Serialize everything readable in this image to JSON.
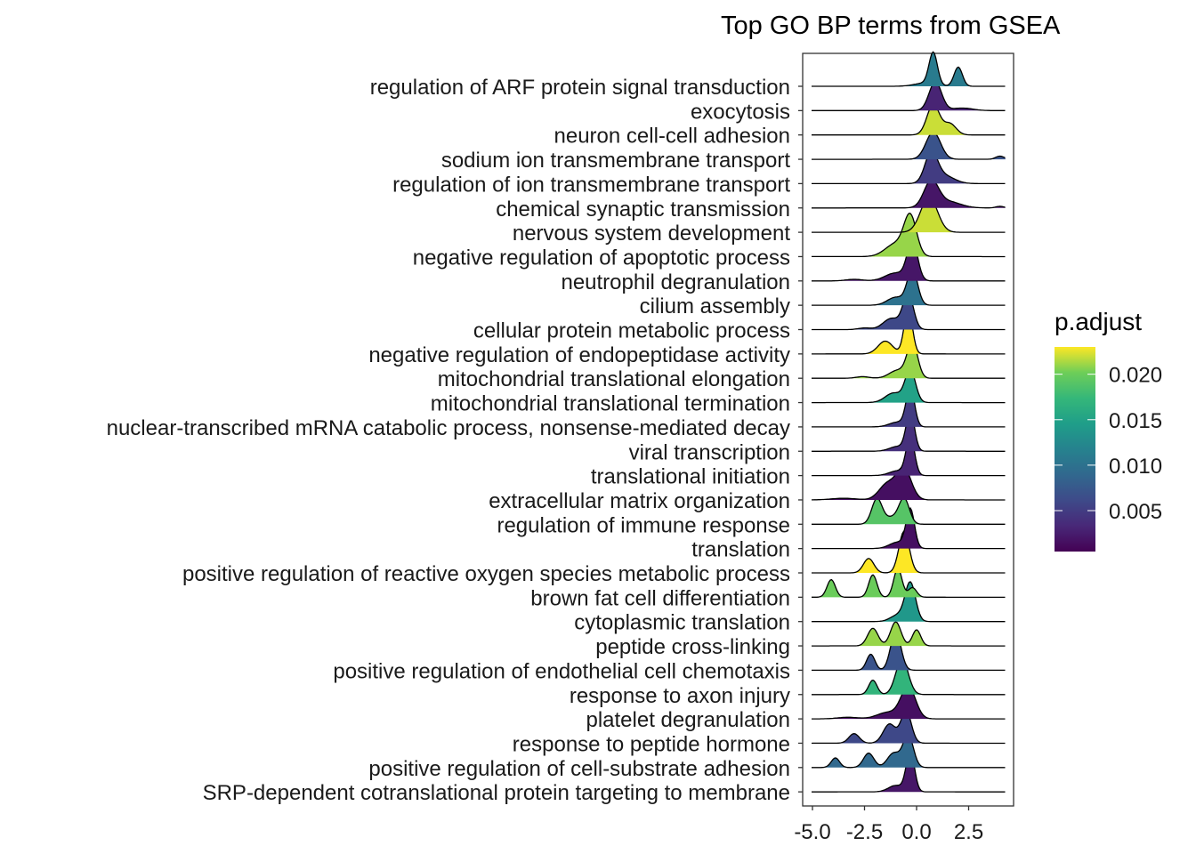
{
  "chart_data": {
    "type": "ridgeline",
    "title": "Top GO BP terms from GSEA",
    "xlabel": "",
    "ylabel": "",
    "xlim": [
      -5.5,
      4.5
    ],
    "x_ticks": [
      "-5.0",
      "-2.5",
      "0.0",
      "2.5"
    ],
    "x_tick_values": [
      -5.0,
      -2.5,
      0.0,
      2.5
    ],
    "legend": {
      "title": "p.adjust",
      "placement": "right",
      "tick_labels": [
        "0.020",
        "0.015",
        "0.010",
        "0.005"
      ],
      "tick_values": [
        0.02,
        0.015,
        0.01,
        0.005
      ],
      "range": [
        0.0005,
        0.023
      ],
      "colormap": "viridis"
    },
    "series": [
      {
        "name": "regulation of ARF protein signal transduction",
        "p_adjust": 0.011,
        "peaks": [
          [
            0.8,
            0.2,
            1.0
          ],
          [
            2.0,
            0.2,
            0.6
          ],
          [
            0.4,
            0.5,
            0.1
          ]
        ]
      },
      {
        "name": "exocytosis",
        "p_adjust": 0.003,
        "peaks": [
          [
            0.9,
            0.3,
            0.9
          ],
          [
            2.2,
            0.5,
            0.08
          ]
        ]
      },
      {
        "name": "neuron cell-cell adhesion",
        "p_adjust": 0.022,
        "peaks": [
          [
            0.8,
            0.3,
            0.95
          ],
          [
            1.6,
            0.3,
            0.35
          ]
        ]
      },
      {
        "name": "sodium ion transmembrane transport",
        "p_adjust": 0.007,
        "peaks": [
          [
            0.8,
            0.35,
            0.85
          ],
          [
            4.0,
            0.2,
            0.1
          ]
        ]
      },
      {
        "name": "regulation of ion transmembrane transport",
        "p_adjust": 0.005,
        "peaks": [
          [
            0.7,
            0.3,
            0.9
          ],
          [
            1.3,
            0.5,
            0.25
          ]
        ]
      },
      {
        "name": "chemical synaptic transmission",
        "p_adjust": 0.002,
        "peaks": [
          [
            0.7,
            0.35,
            0.8
          ],
          [
            1.5,
            0.6,
            0.2
          ],
          [
            4.0,
            0.2,
            0.05
          ]
        ]
      },
      {
        "name": "nervous system development",
        "p_adjust": 0.022,
        "peaks": [
          [
            0.6,
            0.4,
            1.1
          ]
        ]
      },
      {
        "name": "negative regulation of apoptotic process",
        "p_adjust": 0.021,
        "peaks": [
          [
            -0.3,
            0.3,
            1.2
          ],
          [
            -1.0,
            0.5,
            0.4
          ]
        ]
      },
      {
        "name": "neutrophil degranulation",
        "p_adjust": 0.002,
        "peaks": [
          [
            -0.2,
            0.25,
            1.2
          ],
          [
            -1.0,
            0.5,
            0.25
          ],
          [
            -3.0,
            0.4,
            0.05
          ]
        ]
      },
      {
        "name": "cilium assembly",
        "p_adjust": 0.01,
        "peaks": [
          [
            -0.2,
            0.25,
            1.1
          ],
          [
            -1.0,
            0.4,
            0.25
          ]
        ]
      },
      {
        "name": "cellular protein metabolic process",
        "p_adjust": 0.006,
        "peaks": [
          [
            -0.4,
            0.25,
            1.1
          ],
          [
            -1.2,
            0.4,
            0.35
          ],
          [
            -2.5,
            0.3,
            0.05
          ]
        ]
      },
      {
        "name": "negative regulation of endopeptidase activity",
        "p_adjust": 0.023,
        "peaks": [
          [
            -0.4,
            0.2,
            1.4
          ],
          [
            -1.5,
            0.35,
            0.4
          ]
        ]
      },
      {
        "name": "mitochondrial translational elongation",
        "p_adjust": 0.021,
        "peaks": [
          [
            -0.2,
            0.25,
            1.1
          ],
          [
            -0.9,
            0.4,
            0.25
          ],
          [
            -2.6,
            0.3,
            0.05
          ]
        ]
      },
      {
        "name": "mitochondrial translational termination",
        "p_adjust": 0.015,
        "peaks": [
          [
            -0.3,
            0.25,
            1.0
          ],
          [
            -1.1,
            0.4,
            0.3
          ]
        ]
      },
      {
        "name": "nuclear-transcribed mRNA catabolic process, nonsense-mediated decay",
        "p_adjust": 0.005,
        "peaks": [
          [
            -0.3,
            0.2,
            1.2
          ],
          [
            -0.9,
            0.4,
            0.15
          ]
        ]
      },
      {
        "name": "viral transcription",
        "p_adjust": 0.004,
        "peaks": [
          [
            -0.3,
            0.2,
            1.2
          ],
          [
            -0.9,
            0.4,
            0.15
          ]
        ]
      },
      {
        "name": "translational initiation",
        "p_adjust": 0.003,
        "peaks": [
          [
            -0.3,
            0.2,
            1.2
          ],
          [
            -0.9,
            0.4,
            0.15
          ]
        ]
      },
      {
        "name": "extracellular matrix organization",
        "p_adjust": 0.0015,
        "peaks": [
          [
            -0.6,
            0.35,
            0.95
          ],
          [
            -1.4,
            0.4,
            0.5
          ],
          [
            -3.5,
            0.6,
            0.05
          ]
        ]
      },
      {
        "name": "regulation of immune response",
        "p_adjust": 0.019,
        "peaks": [
          [
            -0.6,
            0.25,
            0.8
          ],
          [
            -1.9,
            0.25,
            0.8
          ],
          [
            -1.2,
            0.3,
            0.2
          ]
        ]
      },
      {
        "name": "translation",
        "p_adjust": 0.0015,
        "peaks": [
          [
            -0.3,
            0.2,
            1.2
          ],
          [
            -0.9,
            0.4,
            0.2
          ]
        ]
      },
      {
        "name": "positive regulation of reactive oxygen species metabolic process",
        "p_adjust": 0.023,
        "peaks": [
          [
            -0.6,
            0.25,
            1.3
          ],
          [
            -2.3,
            0.25,
            0.45
          ]
        ]
      },
      {
        "name": "brown fat cell differentiation",
        "p_adjust": 0.02,
        "peaks": [
          [
            -4.1,
            0.2,
            0.55
          ],
          [
            -2.1,
            0.2,
            0.7
          ],
          [
            -0.9,
            0.2,
            0.9
          ],
          [
            -0.2,
            0.2,
            0.3
          ]
        ]
      },
      {
        "name": "cytoplasmic translation",
        "p_adjust": 0.014,
        "peaks": [
          [
            -0.3,
            0.25,
            1.2
          ],
          [
            -0.9,
            0.35,
            0.2
          ]
        ]
      },
      {
        "name": "peptide cross-linking",
        "p_adjust": 0.021,
        "peaks": [
          [
            -2.1,
            0.25,
            0.55
          ],
          [
            -1.0,
            0.25,
            0.75
          ],
          [
            0.0,
            0.2,
            0.5
          ]
        ]
      },
      {
        "name": "positive regulation of endothelial cell chemotaxis",
        "p_adjust": 0.007,
        "peaks": [
          [
            -2.2,
            0.2,
            0.5
          ],
          [
            -1.0,
            0.25,
            1.2
          ]
        ]
      },
      {
        "name": "response to axon injury",
        "p_adjust": 0.017,
        "peaks": [
          [
            -2.1,
            0.2,
            0.45
          ],
          [
            -0.7,
            0.3,
            1.1
          ]
        ]
      },
      {
        "name": "platelet degranulation",
        "p_adjust": 0.0015,
        "peaks": [
          [
            -0.4,
            0.35,
            1.0
          ],
          [
            -1.4,
            0.5,
            0.2
          ],
          [
            -3.3,
            0.5,
            0.05
          ]
        ]
      },
      {
        "name": "response to peptide hormone",
        "p_adjust": 0.006,
        "peaks": [
          [
            -0.5,
            0.25,
            1.0
          ],
          [
            -1.3,
            0.3,
            0.6
          ],
          [
            -3.0,
            0.25,
            0.3
          ]
        ]
      },
      {
        "name": "positive regulation of cell-substrate adhesion",
        "p_adjust": 0.009,
        "peaks": [
          [
            -0.4,
            0.25,
            1.0
          ],
          [
            -1.1,
            0.3,
            0.45
          ],
          [
            -2.3,
            0.25,
            0.45
          ],
          [
            -3.9,
            0.2,
            0.3
          ]
        ]
      },
      {
        "name": "SRP-dependent cotranslational protein targeting to membrane",
        "p_adjust": 0.002,
        "peaks": [
          [
            -0.3,
            0.2,
            1.25
          ],
          [
            -1.0,
            0.35,
            0.2
          ]
        ]
      }
    ]
  }
}
